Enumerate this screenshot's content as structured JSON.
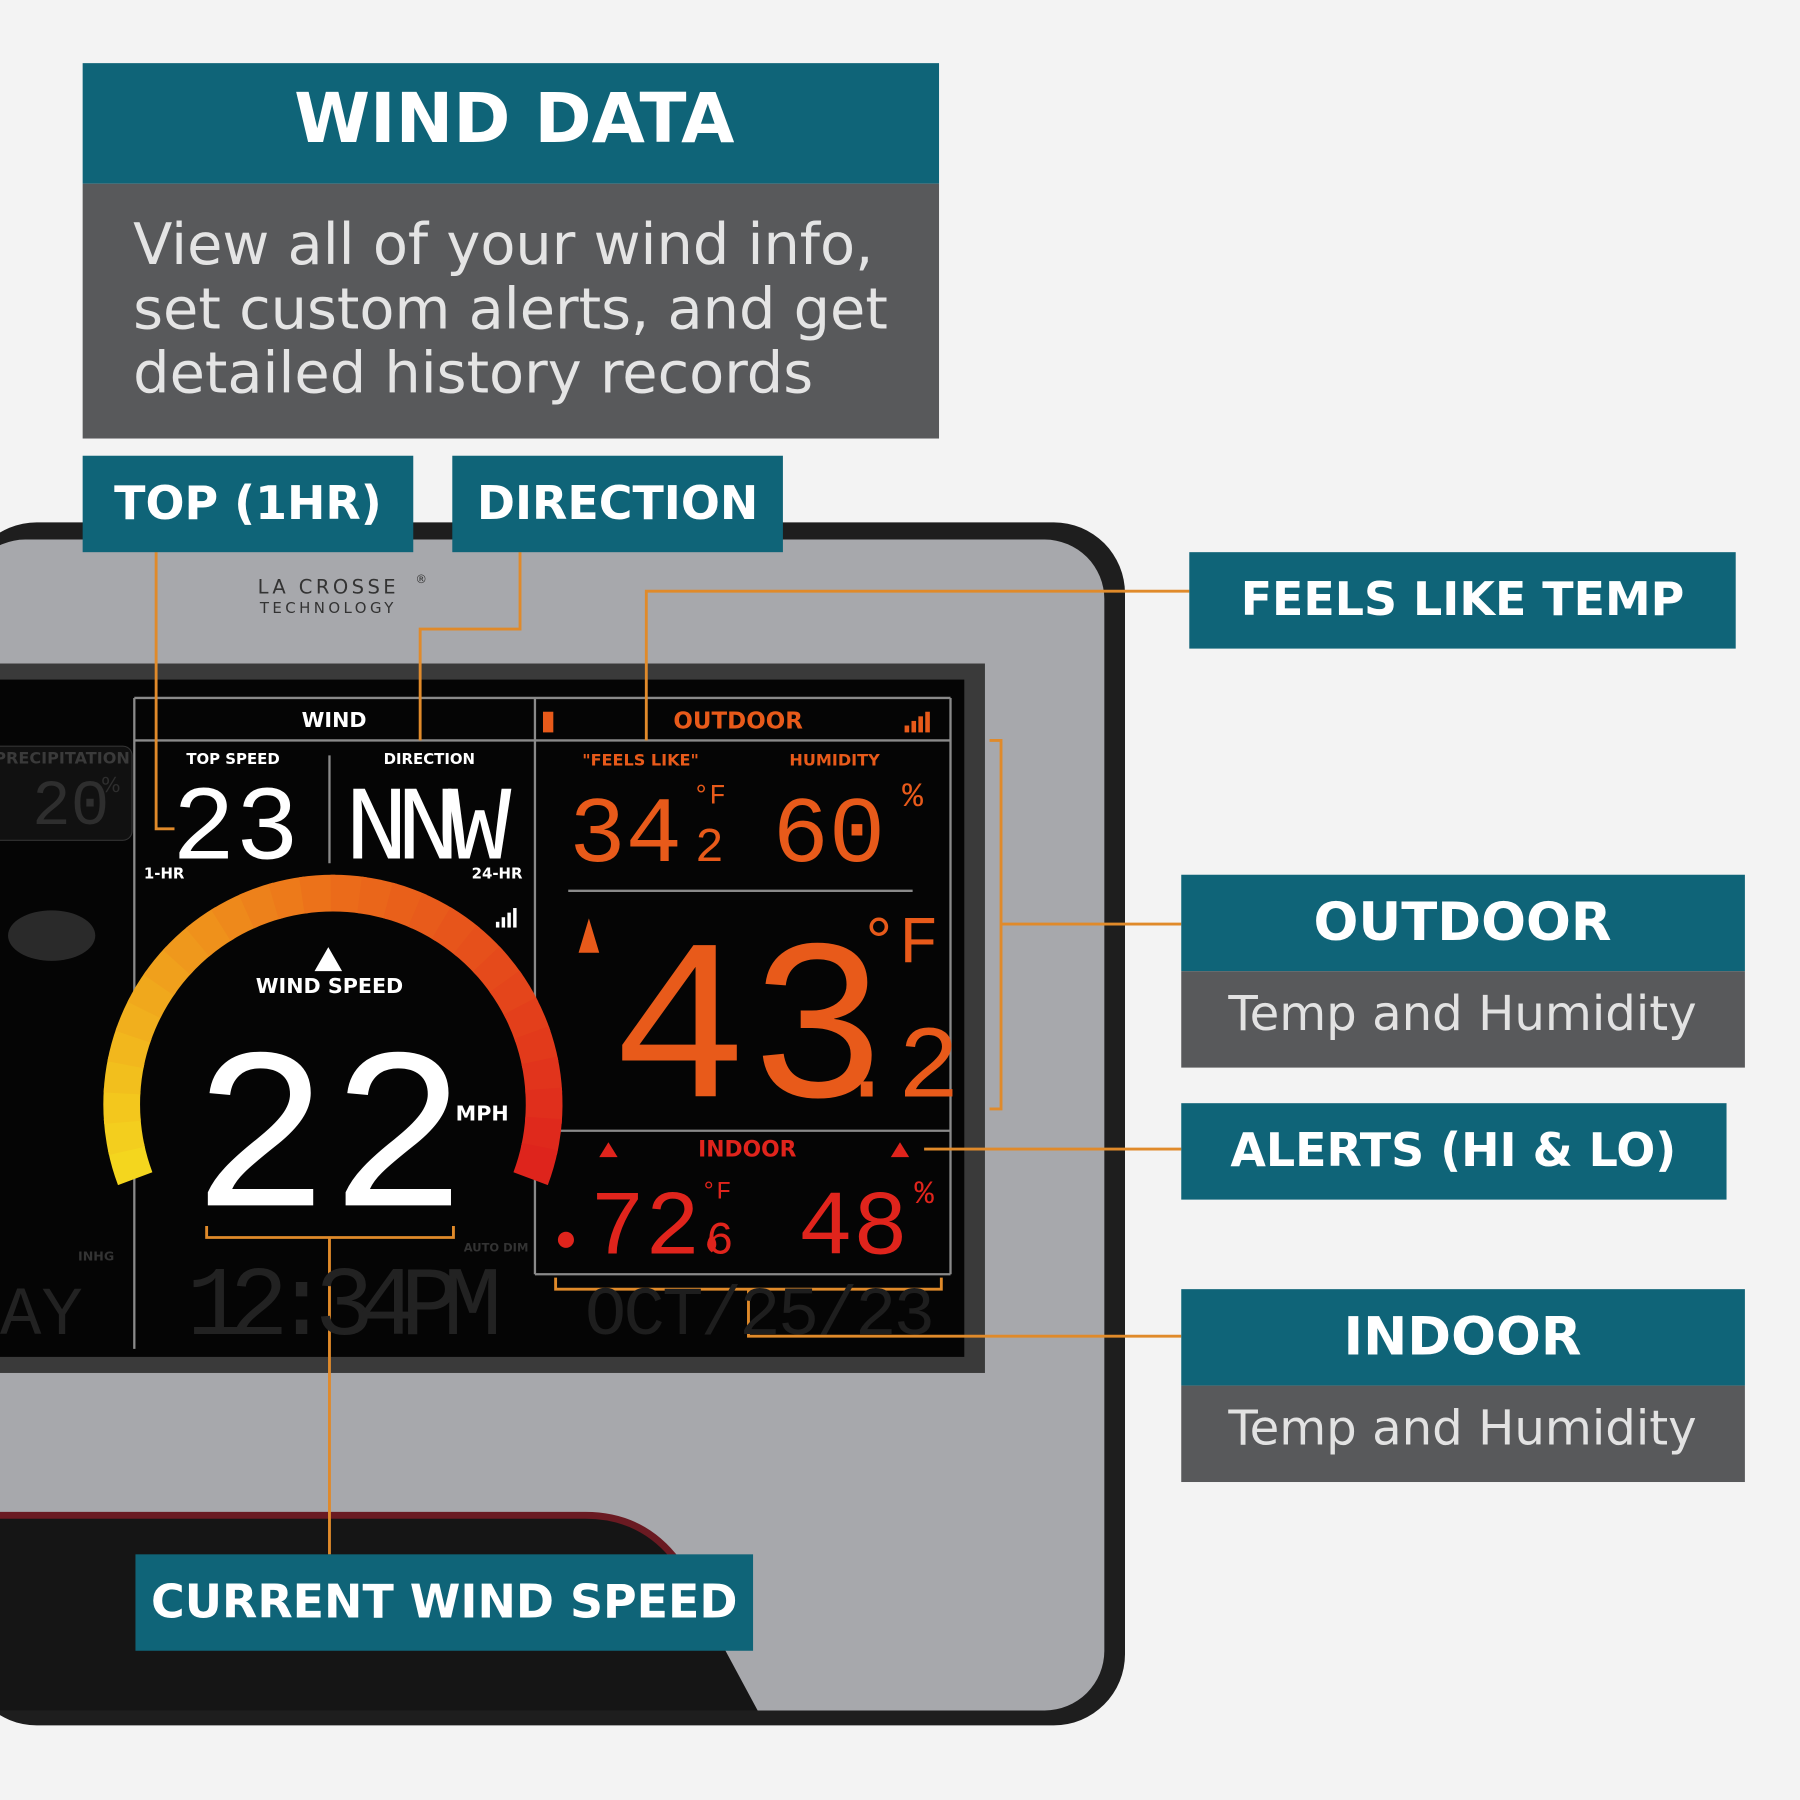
{
  "header": {
    "title": "WIND DATA",
    "description": [
      "View all of your wind info,",
      "set custom alerts, and get",
      "detailed history records"
    ]
  },
  "callouts": {
    "top_speed": "TOP (1HR)",
    "direction": "DIRECTION",
    "feels_like": "FEELS LIKE TEMP",
    "outdoor": {
      "title": "OUTDOOR",
      "subtitle": "Temp and Humidity"
    },
    "alerts": "ALERTS (HI & LO)",
    "indoor": {
      "title": "INDOOR",
      "subtitle": "Temp and Humidity"
    },
    "current_wind_speed": "CURRENT WIND SPEED"
  },
  "brand": {
    "name": "LA CROSSE",
    "mark": "®",
    "tagline": "TECHNOLOGY"
  },
  "display": {
    "wind": {
      "title": "WIND",
      "top_speed_label": "TOP SPEED",
      "direction_label": "DIRECTION",
      "top_speed": "23",
      "direction": "NNW",
      "top_speed_period": "1-HR",
      "direction_period": "24-HR",
      "speed_label": "WIND SPEED",
      "speed": "22",
      "unit": "MPH"
    },
    "outdoor": {
      "title": "OUTDOOR",
      "feels_like_label": "\"FEELS LIKE\"",
      "humidity_label": "HUMIDITY",
      "feels_like": {
        "whole": "34",
        "decimal": "2",
        "unit": "°F"
      },
      "humidity": {
        "value": "60",
        "unit": "%"
      },
      "temperature": {
        "whole": "43",
        "decimal": ".2",
        "unit": "°F"
      }
    },
    "indoor": {
      "title": "INDOOR",
      "temperature": {
        "whole": "72",
        "decimal": "6",
        "unit": "°F"
      },
      "humidity": {
        "value": "48",
        "unit": "%"
      }
    },
    "dim": {
      "precipitation": "PRECIPITATION",
      "precipitation_value": "20",
      "precipitation_unit": "%",
      "pressure_unit": "INHG",
      "auto_dim": "AUTO DIM",
      "time": "12:34PM",
      "date": "OCT/25/23",
      "day": "AY"
    }
  }
}
